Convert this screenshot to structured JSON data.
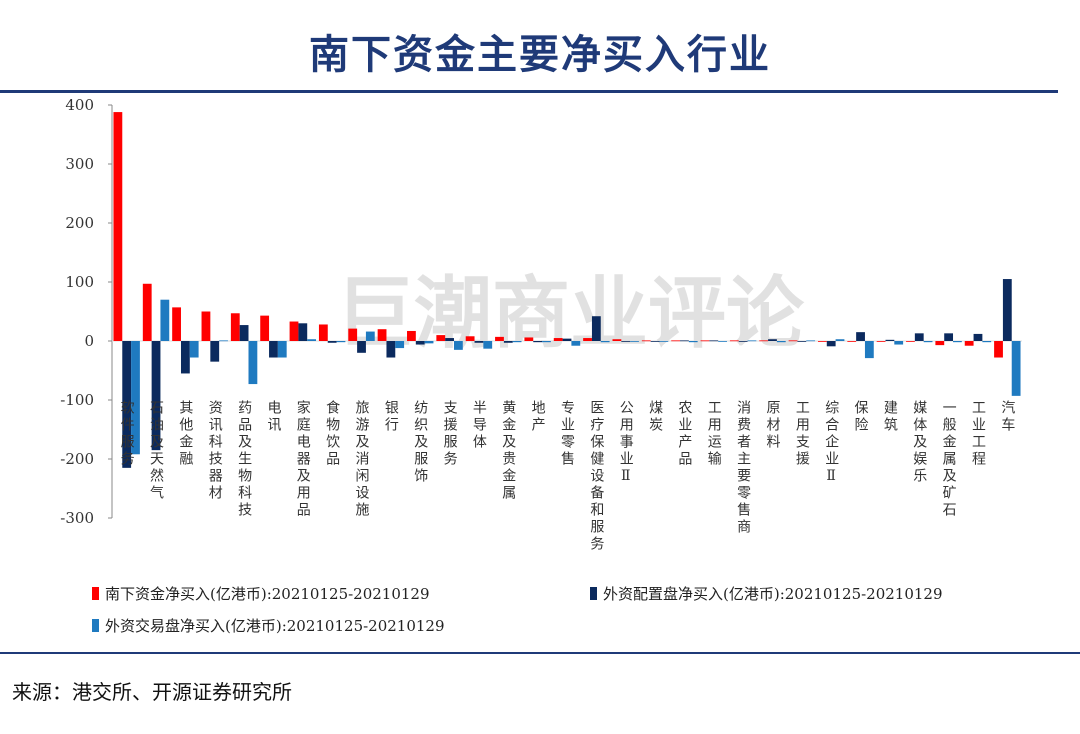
{
  "title": "南下资金主要净买入行业",
  "source": "来源：港交所、开源证券研究所",
  "watermark": "巨潮商业评论",
  "chart_data": {
    "type": "bar",
    "title": "",
    "xlabel": "",
    "ylabel": "",
    "ylim": [
      -300,
      400
    ],
    "yticks": [
      -300,
      -200,
      -100,
      0,
      100,
      200,
      300,
      400
    ],
    "grid": false,
    "legend": "bottom",
    "categories": [
      "软件服务",
      "石油及天然气",
      "其他金融",
      "资讯科技器材",
      "药品及生物科技",
      "电讯",
      "家庭电器及用品",
      "食物饮品",
      "旅游及消闲设施",
      "银行",
      "纺织及服饰",
      "支援服务",
      "半导体",
      "黄金及贵金属",
      "地产",
      "专业零售",
      "医疗保健设备和服务",
      "公用事业Ⅱ",
      "煤炭",
      "农业产品",
      "工用运输",
      "消费者主要零售商",
      "原材料",
      "工用支援",
      "综合企业Ⅱ",
      "保险",
      "建筑",
      "媒体及娱乐",
      "一般金属及矿石",
      "工业工程",
      "汽车"
    ],
    "series": [
      {
        "name": "南下资金净买入(亿港币):20210125-20210129",
        "color": "#ff0000",
        "values": [
          388,
          97,
          57,
          50,
          47,
          43,
          33,
          28,
          21,
          20,
          17,
          10,
          8,
          7,
          6,
          5,
          5,
          3,
          1,
          1,
          1,
          1,
          1,
          1,
          -1,
          -1,
          -1,
          -1,
          -7,
          -8,
          -28
        ]
      },
      {
        "name": "外资配置盘净买入(亿港币):20210125-20210129",
        "color": "#0b2a5e",
        "values": [
          -215,
          -185,
          -55,
          -35,
          27,
          -28,
          30,
          -3,
          -20,
          -28,
          -6,
          5,
          -3,
          -3,
          -2,
          4,
          42,
          -1,
          -1,
          1,
          1,
          -1,
          3,
          -1,
          -9,
          15,
          2,
          13,
          13,
          12,
          105
        ]
      },
      {
        "name": "外资交易盘净买入(亿港币):20210125-20210129",
        "color": "#1f7ac0",
        "values": [
          -192,
          70,
          -28,
          1,
          -73,
          -28,
          3,
          -2,
          16,
          -12,
          -4,
          -15,
          -13,
          -2,
          -2,
          -8,
          -2,
          -1,
          -1,
          -2,
          -1,
          1,
          -2,
          1,
          3,
          -29,
          -6,
          -2,
          -2,
          -2,
          -93
        ]
      }
    ]
  }
}
